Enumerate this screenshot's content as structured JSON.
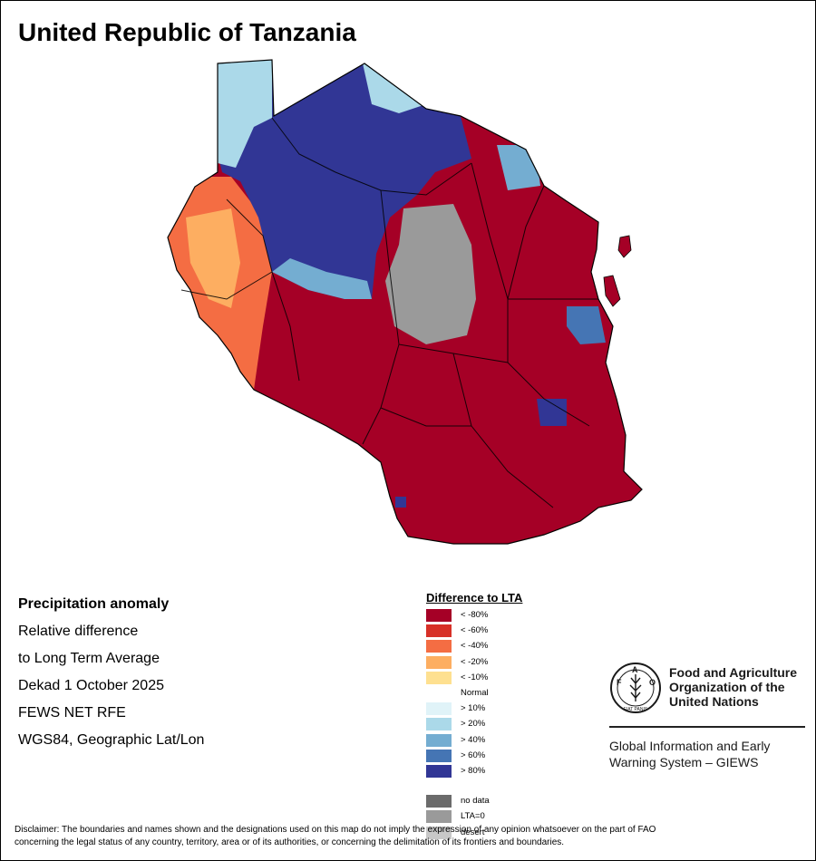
{
  "map": {
    "title": "United Republic of Tanzania",
    "bg_color": "#ffffff"
  },
  "info": {
    "heading": "Precipitation anomaly",
    "lines": [
      "Relative difference",
      "to Long Term Average",
      "Dekad 1 October 2025",
      "FEWS NET RFE",
      "WGS84, Geographic Lat/Lon"
    ]
  },
  "legend": {
    "title": "Difference to LTA",
    "items": [
      {
        "label": "< -80%",
        "color": "#a50026"
      },
      {
        "label": "< -60%",
        "color": "#d73027"
      },
      {
        "label": "< -40%",
        "color": "#f46d43"
      },
      {
        "label": "< -20%",
        "color": "#fdae61"
      },
      {
        "label": "< -10%",
        "color": "#fee090"
      },
      {
        "label": "Normal",
        "color": "#ffffff"
      },
      {
        "label": "> 10%",
        "color": "#e0f3f8"
      },
      {
        "label": "> 20%",
        "color": "#abd9e9"
      },
      {
        "label": "> 40%",
        "color": "#74add1"
      },
      {
        "label": "> 60%",
        "color": "#4575b4"
      },
      {
        "label": "> 80%",
        "color": "#313695"
      }
    ],
    "extras": [
      {
        "label": "no data",
        "color": "#6b6b6b"
      },
      {
        "label": "LTA=0",
        "color": "#9a9a9a"
      },
      {
        "label": "desert",
        "color": "#c8c8c8"
      }
    ]
  },
  "fao": {
    "name_lines": [
      "Food and Agriculture",
      "Organization of the",
      "United Nations"
    ],
    "logo_letters": "FAO",
    "logo_motto": "FIAT PANIS",
    "giews_lines": [
      "Global Information and Early",
      "Warning System – GIEWS"
    ]
  },
  "disclaimer": {
    "line1": "Disclaimer: The boundaries and names shown and the designations used on this map do not imply the expression of any opinion whatsoever on the part of FAO",
    "line2": "concerning the legal status of any country, territory, area or of its authorities, or concerning the delimitation of its frontiers and boundaries."
  }
}
